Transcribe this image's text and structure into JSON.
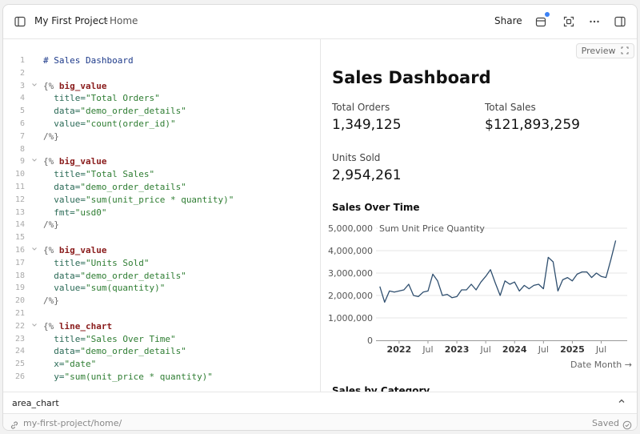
{
  "topbar": {
    "project": "My First Project",
    "separator": ">",
    "page": "Home",
    "share_label": "Share"
  },
  "editor": {
    "lines": [
      {
        "n": "1",
        "fold": "",
        "parts": [
          [
            "h",
            "# Sales Dashboard"
          ]
        ]
      },
      {
        "n": "2",
        "fold": "",
        "parts": []
      },
      {
        "n": "3",
        "fold": "v",
        "parts": [
          [
            "d",
            "{% "
          ],
          [
            "k",
            "big_value"
          ]
        ]
      },
      {
        "n": "4",
        "fold": "",
        "parts": [
          [
            "a",
            "  title="
          ],
          [
            "s",
            "\"Total Orders\""
          ]
        ]
      },
      {
        "n": "5",
        "fold": "",
        "parts": [
          [
            "a",
            "  data="
          ],
          [
            "s",
            "\"demo_order_details\""
          ]
        ]
      },
      {
        "n": "6",
        "fold": "",
        "parts": [
          [
            "a",
            "  value="
          ],
          [
            "s",
            "\"count(order_id)\""
          ]
        ]
      },
      {
        "n": "7",
        "fold": "",
        "parts": [
          [
            "d",
            "/%}"
          ]
        ]
      },
      {
        "n": "8",
        "fold": "",
        "parts": []
      },
      {
        "n": "9",
        "fold": "v",
        "parts": [
          [
            "d",
            "{% "
          ],
          [
            "k",
            "big_value"
          ]
        ]
      },
      {
        "n": "10",
        "fold": "",
        "parts": [
          [
            "a",
            "  title="
          ],
          [
            "s",
            "\"Total Sales\""
          ]
        ]
      },
      {
        "n": "11",
        "fold": "",
        "parts": [
          [
            "a",
            "  data="
          ],
          [
            "s",
            "\"demo_order_details\""
          ]
        ]
      },
      {
        "n": "12",
        "fold": "",
        "parts": [
          [
            "a",
            "  value="
          ],
          [
            "s",
            "\"sum(unit_price * quantity)\""
          ]
        ]
      },
      {
        "n": "13",
        "fold": "",
        "parts": [
          [
            "a",
            "  fmt="
          ],
          [
            "s",
            "\"usd0\""
          ]
        ]
      },
      {
        "n": "14",
        "fold": "",
        "parts": [
          [
            "d",
            "/%}"
          ]
        ]
      },
      {
        "n": "15",
        "fold": "",
        "parts": []
      },
      {
        "n": "16",
        "fold": "v",
        "parts": [
          [
            "d",
            "{% "
          ],
          [
            "k",
            "big_value"
          ]
        ]
      },
      {
        "n": "17",
        "fold": "",
        "parts": [
          [
            "a",
            "  title="
          ],
          [
            "s",
            "\"Units Sold\""
          ]
        ]
      },
      {
        "n": "18",
        "fold": "",
        "parts": [
          [
            "a",
            "  data="
          ],
          [
            "s",
            "\"demo_order_details\""
          ]
        ]
      },
      {
        "n": "19",
        "fold": "",
        "parts": [
          [
            "a",
            "  value="
          ],
          [
            "s",
            "\"sum(quantity)\""
          ]
        ]
      },
      {
        "n": "20",
        "fold": "",
        "parts": [
          [
            "d",
            "/%}"
          ]
        ]
      },
      {
        "n": "21",
        "fold": "",
        "parts": []
      },
      {
        "n": "22",
        "fold": "v",
        "parts": [
          [
            "d",
            "{% "
          ],
          [
            "k",
            "line_chart"
          ]
        ]
      },
      {
        "n": "23",
        "fold": "",
        "parts": [
          [
            "a",
            "  title="
          ],
          [
            "s",
            "\"Sales Over Time\""
          ]
        ]
      },
      {
        "n": "24",
        "fold": "",
        "parts": [
          [
            "a",
            "  data="
          ],
          [
            "s",
            "\"demo_order_details\""
          ]
        ]
      },
      {
        "n": "25",
        "fold": "",
        "parts": [
          [
            "a",
            "  x="
          ],
          [
            "s",
            "\"date\""
          ]
        ]
      },
      {
        "n": "26",
        "fold": "",
        "parts": [
          [
            "a",
            "  y="
          ],
          [
            "s",
            "\"sum(unit_price * quantity)\""
          ]
        ]
      }
    ]
  },
  "autocomplete": {
    "label": "area_chart"
  },
  "status": {
    "path": "my-first-project/home/",
    "saved": "Saved"
  },
  "preview": {
    "button_label": "Preview",
    "title": "Sales Dashboard",
    "big_values": [
      {
        "title": "Total Orders",
        "value": "1,349,125"
      },
      {
        "title": "Total Sales",
        "value": "$121,893,259"
      },
      {
        "title": "Units Sold",
        "value": "2,954,261"
      }
    ],
    "chart_title": "Sales Over Time",
    "date_month_label": "Date Month →",
    "next_section_title": "Sales by Category"
  },
  "chart_data": {
    "type": "line",
    "title": "Sales Over Time",
    "ylabel": "Sum Unit Price Quantity",
    "xlabel": "Date Month",
    "ylim": [
      0,
      5000000
    ],
    "yticks": [
      0,
      1000000,
      2000000,
      3000000,
      4000000,
      5000000
    ],
    "ytick_labels": [
      "0",
      "1,000,000",
      "2,000,000",
      "3,000,000",
      "4,000,000",
      "5,000,000"
    ],
    "xlim": [
      2021.6,
      2025.95
    ],
    "xticks": [
      {
        "x": 2022.0,
        "label": "2022",
        "bold": true
      },
      {
        "x": 2022.5,
        "label": "Jul",
        "bold": false
      },
      {
        "x": 2023.0,
        "label": "2023",
        "bold": true
      },
      {
        "x": 2023.5,
        "label": "Jul",
        "bold": false
      },
      {
        "x": 2024.0,
        "label": "2024",
        "bold": true
      },
      {
        "x": 2024.5,
        "label": "Jul",
        "bold": false
      },
      {
        "x": 2025.0,
        "label": "2025",
        "bold": true
      },
      {
        "x": 2025.5,
        "label": "Jul",
        "bold": false
      }
    ],
    "series": [
      {
        "color": "#2f4f6f",
        "x": [
          2021.667,
          2021.75,
          2021.833,
          2021.917,
          2022.0,
          2022.083,
          2022.167,
          2022.25,
          2022.333,
          2022.417,
          2022.5,
          2022.583,
          2022.667,
          2022.75,
          2022.833,
          2022.917,
          2023.0,
          2023.083,
          2023.167,
          2023.25,
          2023.333,
          2023.417,
          2023.5,
          2023.583,
          2023.667,
          2023.75,
          2023.833,
          2023.917,
          2024.0,
          2024.083,
          2024.167,
          2024.25,
          2024.333,
          2024.417,
          2024.5,
          2024.583,
          2024.667,
          2024.75,
          2024.833,
          2024.917,
          2025.0,
          2025.083,
          2025.167,
          2025.25,
          2025.333,
          2025.417,
          2025.5,
          2025.583,
          2025.667,
          2025.75
        ],
        "y": [
          2400000,
          1700000,
          2200000,
          2150000,
          2200000,
          2250000,
          2500000,
          2000000,
          1950000,
          2150000,
          2200000,
          2950000,
          2650000,
          2000000,
          2050000,
          1900000,
          1950000,
          2250000,
          2250000,
          2500000,
          2250000,
          2600000,
          2850000,
          3150000,
          2550000,
          2000000,
          2650000,
          2500000,
          2600000,
          2200000,
          2450000,
          2300000,
          2450000,
          2500000,
          2300000,
          3700000,
          3500000,
          2200000,
          2700000,
          2800000,
          2650000,
          2950000,
          3050000,
          3050000,
          2800000,
          3000000,
          2850000,
          2800000,
          3600000,
          4450000
        ]
      }
    ]
  }
}
